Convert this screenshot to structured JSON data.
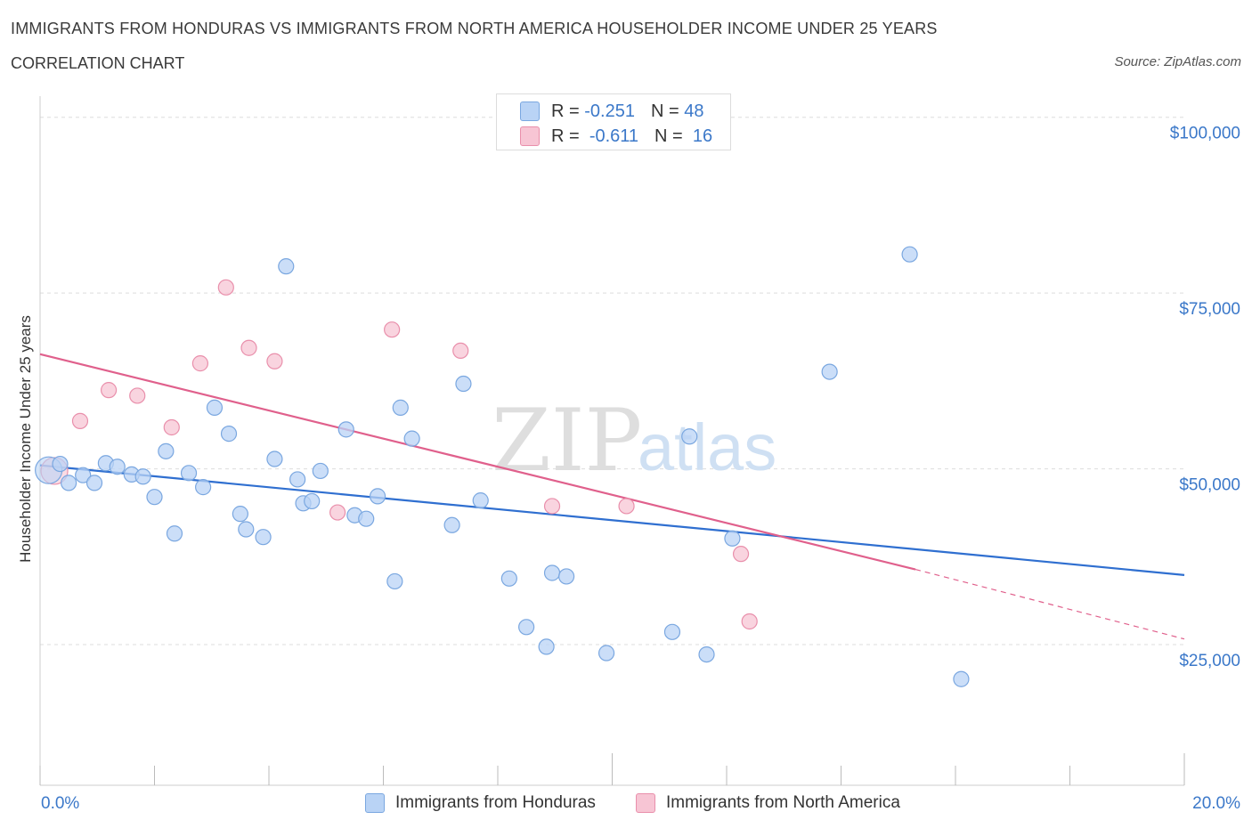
{
  "header": {
    "title": "IMMIGRANTS FROM HONDURAS VS IMMIGRANTS FROM NORTH AMERICA HOUSEHOLDER INCOME UNDER 25 YEARS",
    "subtitle": "CORRELATION CHART",
    "source": "Source: ZipAtlas.com"
  },
  "watermark": {
    "zip": "ZIP",
    "atlas": "atlas"
  },
  "legend": {
    "rows": [
      {
        "r_label": "R =",
        "r_value": "-0.251",
        "n_label": "N =",
        "n_value": "48"
      },
      {
        "r_label": "R =",
        "r_value": "-0.611",
        "n_label": "N =",
        "n_value": "16"
      }
    ]
  },
  "colors": {
    "honduras_fill": "#b9d3f5",
    "honduras_stroke": "#7aa7e0",
    "honduras_line": "#2f6fd0",
    "north_america_fill": "#f7c5d4",
    "north_america_stroke": "#e98fab",
    "north_america_line": "#e0608c",
    "tick_text": "#3b78c9",
    "grid": "#dddddd"
  },
  "chart_data": {
    "type": "scatter",
    "title": "IMMIGRANTS FROM HONDURAS VS IMMIGRANTS FROM NORTH AMERICA HOUSEHOLDER INCOME UNDER 25 YEARS",
    "ylabel": "Householder Income Under 25 years",
    "xlabel": "",
    "xlim": [
      0,
      20
    ],
    "ylim": [
      5000,
      103000
    ],
    "x_tick_labels": [
      "0.0%",
      "20.0%"
    ],
    "y_ticks": [
      {
        "value": 100000,
        "label": "$100,000"
      },
      {
        "value": 75000,
        "label": "$75,000"
      },
      {
        "value": 50000,
        "label": "$50,000"
      },
      {
        "value": 25000,
        "label": "$25,000"
      }
    ],
    "grid": true,
    "legend_placement": "top-center",
    "series": [
      {
        "name": "Immigrants from Honduras",
        "points": [
          [
            0.15,
            49800
          ],
          [
            0.35,
            50700
          ],
          [
            0.5,
            48000
          ],
          [
            0.75,
            49100
          ],
          [
            0.95,
            48000
          ],
          [
            1.15,
            50800
          ],
          [
            1.35,
            50300
          ],
          [
            1.6,
            49200
          ],
          [
            1.8,
            48900
          ],
          [
            2.0,
            46000
          ],
          [
            2.2,
            52500
          ],
          [
            2.35,
            40800
          ],
          [
            2.6,
            49400
          ],
          [
            2.85,
            47400
          ],
          [
            3.05,
            58700
          ],
          [
            3.3,
            55000
          ],
          [
            3.5,
            43600
          ],
          [
            3.6,
            41400
          ],
          [
            3.9,
            40300
          ],
          [
            4.1,
            51400
          ],
          [
            4.3,
            78800
          ],
          [
            4.5,
            48500
          ],
          [
            4.6,
            45100
          ],
          [
            4.75,
            45400
          ],
          [
            4.9,
            49700
          ],
          [
            5.35,
            55600
          ],
          [
            5.5,
            43400
          ],
          [
            5.7,
            42900
          ],
          [
            5.9,
            46100
          ],
          [
            6.2,
            34000
          ],
          [
            6.3,
            58700
          ],
          [
            6.5,
            54300
          ],
          [
            7.2,
            42000
          ],
          [
            7.4,
            62100
          ],
          [
            7.7,
            45500
          ],
          [
            8.2,
            34400
          ],
          [
            8.5,
            27500
          ],
          [
            8.85,
            24700
          ],
          [
            8.95,
            35200
          ],
          [
            9.2,
            34700
          ],
          [
            9.9,
            23800
          ],
          [
            11.05,
            26800
          ],
          [
            11.35,
            54600
          ],
          [
            11.65,
            23600
          ],
          [
            12.1,
            40100
          ],
          [
            13.8,
            63800
          ],
          [
            15.2,
            80500
          ],
          [
            16.1,
            20100
          ]
        ]
      },
      {
        "name": "Immigrants from North America",
        "points": [
          [
            0.25,
            49700
          ],
          [
            0.7,
            56800
          ],
          [
            1.2,
            61200
          ],
          [
            1.7,
            60400
          ],
          [
            2.3,
            55900
          ],
          [
            2.8,
            65000
          ],
          [
            3.25,
            75800
          ],
          [
            3.65,
            67200
          ],
          [
            4.1,
            65300
          ],
          [
            5.2,
            43800
          ],
          [
            6.15,
            69800
          ],
          [
            7.35,
            66800
          ],
          [
            8.95,
            44700
          ],
          [
            10.25,
            44700
          ],
          [
            12.25,
            37900
          ],
          [
            12.4,
            28300
          ]
        ]
      }
    ],
    "trend_lines": [
      {
        "series": "Immigrants from Honduras",
        "x": [
          0,
          20
        ],
        "y": [
          50500,
          34900
        ]
      },
      {
        "series": "Immigrants from North America",
        "x": [
          0,
          15.3
        ],
        "y": [
          66300,
          35700
        ],
        "dashed_extension": {
          "x": [
            15.3,
            20
          ],
          "y": [
            35700,
            25800
          ]
        }
      }
    ]
  }
}
